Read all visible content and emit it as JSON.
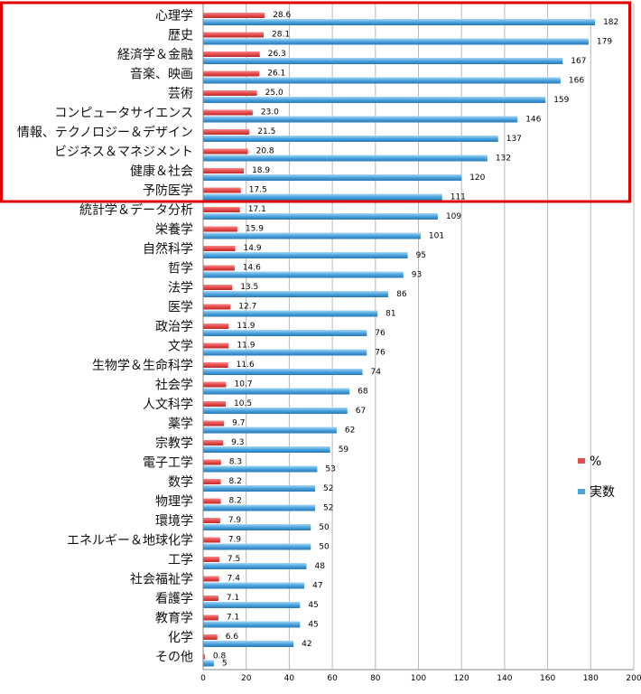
{
  "chart_data": {
    "type": "bar",
    "orientation": "horizontal",
    "categories": [
      "心理学",
      "歴史",
      "経済学＆金融",
      "音楽、映画",
      "芸術",
      "コンピュータサイエンス",
      "情報、テクノロジー＆デザイン",
      "ビジネス＆マネジメント",
      "健康＆社会",
      "予防医学",
      "統計学＆データ分析",
      "栄養学",
      "自然科学",
      "哲学",
      "法学",
      "医学",
      "政治学",
      "文学",
      "生物学＆生命科学",
      "社会学",
      "人文科学",
      "薬学",
      "宗教学",
      "電子工学",
      "数学",
      "物理学",
      "環境学",
      "エネルギー＆地球化学",
      "工学",
      "社会福祉学",
      "看護学",
      "教育学",
      "化学",
      "その他"
    ],
    "series": [
      {
        "name": "%",
        "color": "#e84b4b",
        "values": [
          28.6,
          28.1,
          26.3,
          26.1,
          25.0,
          23.0,
          21.5,
          20.8,
          18.9,
          17.5,
          17.1,
          15.9,
          14.9,
          14.6,
          13.5,
          12.7,
          11.9,
          11.9,
          11.6,
          10.7,
          10.5,
          9.7,
          9.3,
          8.3,
          8.2,
          8.2,
          7.9,
          7.9,
          7.5,
          7.4,
          7.1,
          7.1,
          6.6,
          0.8
        ],
        "labels": [
          "28.6",
          "28.1",
          "26.3",
          "26.1",
          "25.0",
          "23.0",
          "21.5",
          "20.8",
          "18.9",
          "17.5",
          "17.1",
          "15.9",
          "14.9",
          "14.6",
          "13.5",
          "12.7",
          "11.9",
          "11.9",
          "11.6",
          "10.7",
          "10.5",
          "9.7",
          "9.3",
          "8.3",
          "8.2",
          "8.2",
          "7.9",
          "7.9",
          "7.5",
          "7.4",
          "7.1",
          "7.1",
          "6.6",
          "0.8"
        ]
      },
      {
        "name": "実数",
        "color": "#4aa3df",
        "values": [
          182,
          179,
          167,
          166,
          159,
          146,
          137,
          132,
          120,
          111,
          109,
          101,
          95,
          93,
          86,
          81,
          76,
          76,
          74,
          68,
          67,
          62,
          59,
          53,
          52,
          52,
          50,
          50,
          48,
          47,
          45,
          45,
          42,
          5
        ],
        "labels": [
          "182",
          "179",
          "167",
          "166",
          "159",
          "146",
          "137",
          "132",
          "120",
          "111",
          "109",
          "101",
          "95",
          "93",
          "86",
          "81",
          "76",
          "76",
          "74",
          "68",
          "67",
          "62",
          "59",
          "53",
          "52",
          "52",
          "50",
          "50",
          "48",
          "47",
          "45",
          "45",
          "42",
          "5"
        ]
      }
    ],
    "xlim": [
      0,
      200
    ],
    "x_ticks": [
      "0",
      "20",
      "40",
      "60",
      "80",
      "100",
      "120",
      "140",
      "160",
      "180",
      "200"
    ],
    "grid": true,
    "legend_position": "right",
    "highlight": {
      "first_category_index": 0,
      "last_category_index": 9,
      "color": "#e00000"
    }
  }
}
